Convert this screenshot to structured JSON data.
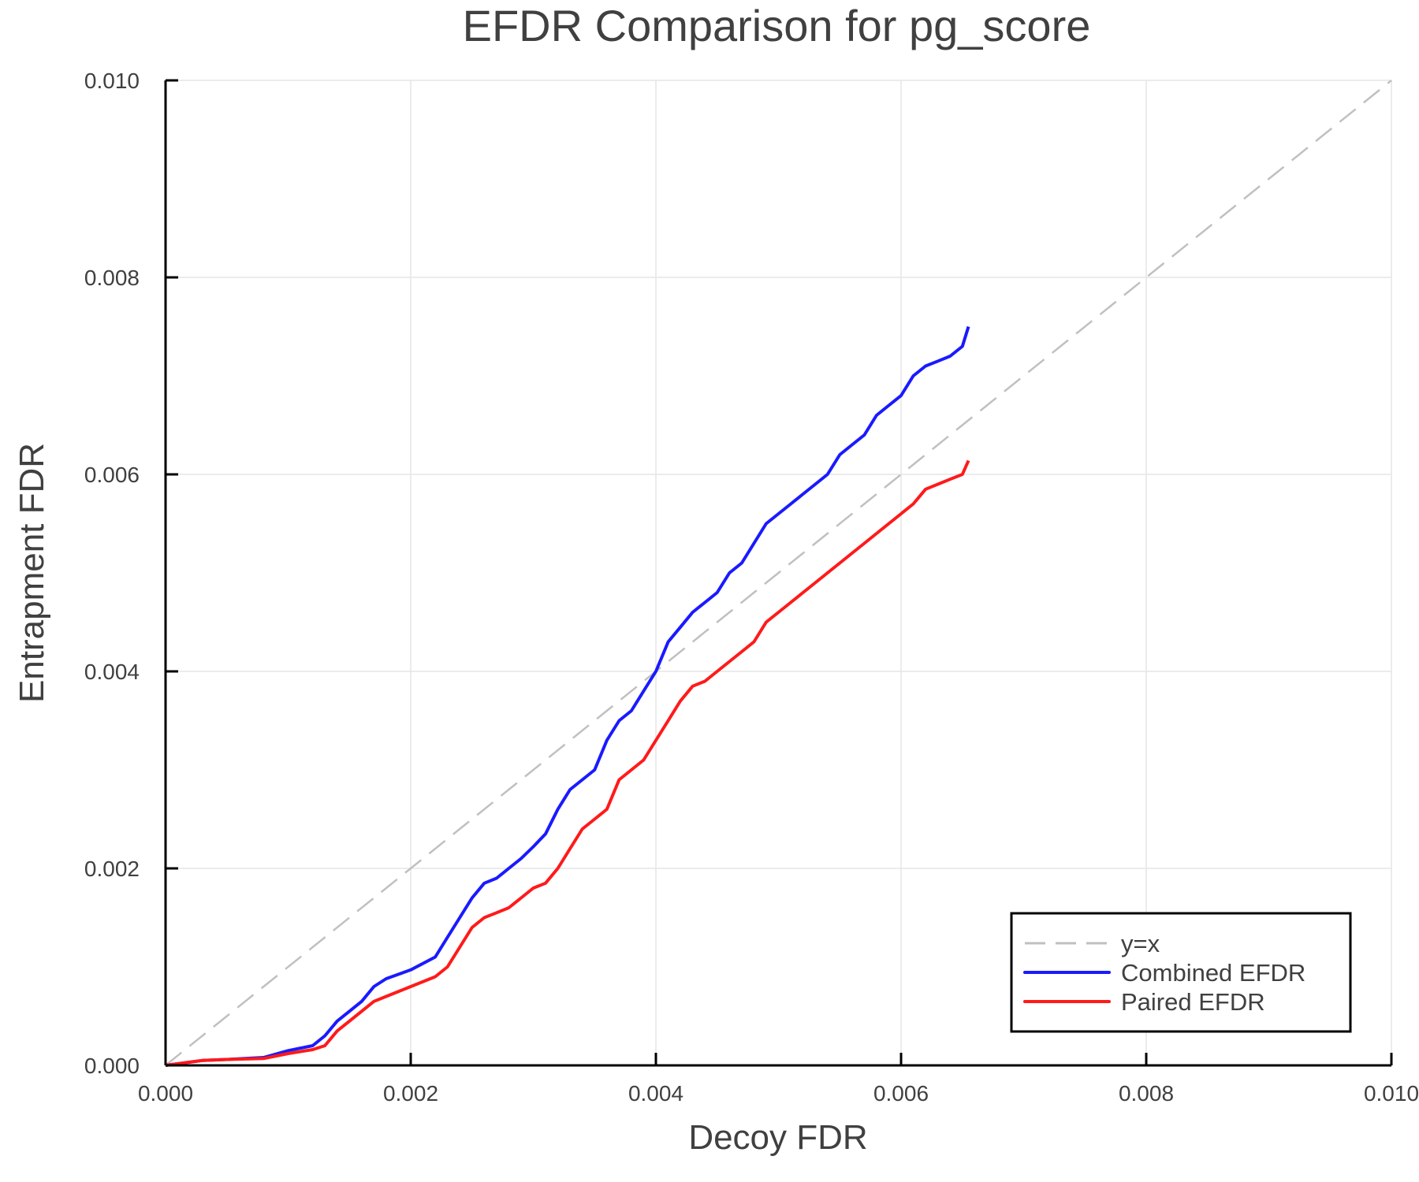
{
  "chart_data": {
    "type": "line",
    "title": "EFDR Comparison for pg_score",
    "xlabel": "Decoy FDR",
    "ylabel": "Entrapment FDR",
    "xlim": [
      0.0,
      0.01
    ],
    "ylim": [
      0.0,
      0.01
    ],
    "grid": true,
    "legend_position": "bottom-right",
    "x_ticks": [
      "0.000",
      "0.002",
      "0.004",
      "0.006",
      "0.008",
      "0.010"
    ],
    "y_ticks": [
      "0.000",
      "0.002",
      "0.004",
      "0.006",
      "0.008",
      "0.010"
    ],
    "series": [
      {
        "name": "y=x",
        "style": "dashed",
        "color": "#c0c0c0",
        "x": [
          0.0,
          0.01
        ],
        "y": [
          0.0,
          0.01
        ]
      },
      {
        "name": "Combined EFDR",
        "style": "solid",
        "color": "#1a1aff",
        "x": [
          0.0,
          0.0003,
          0.0005,
          0.0008,
          0.001,
          0.0012,
          0.0013,
          0.0014,
          0.0015,
          0.0016,
          0.0017,
          0.0018,
          0.002,
          0.0022,
          0.0023,
          0.0024,
          0.0025,
          0.0026,
          0.0027,
          0.0028,
          0.0029,
          0.003,
          0.0031,
          0.0032,
          0.0033,
          0.0034,
          0.0035,
          0.0036,
          0.0037,
          0.0038,
          0.0039,
          0.004,
          0.0041,
          0.0042,
          0.0043,
          0.0044,
          0.0045,
          0.0046,
          0.0047,
          0.0048,
          0.0049,
          0.005,
          0.0051,
          0.0052,
          0.0053,
          0.0054,
          0.0055,
          0.0056,
          0.0057,
          0.0058,
          0.0059,
          0.006,
          0.0061,
          0.0062,
          0.0063,
          0.0064,
          0.0065,
          0.00655
        ],
        "y": [
          0.0,
          5e-05,
          6e-05,
          8e-05,
          0.00015,
          0.0002,
          0.0003,
          0.00045,
          0.00055,
          0.00065,
          0.0008,
          0.00088,
          0.00097,
          0.0011,
          0.0013,
          0.0015,
          0.0017,
          0.00185,
          0.0019,
          0.002,
          0.0021,
          0.00222,
          0.00235,
          0.0026,
          0.0028,
          0.0029,
          0.003,
          0.0033,
          0.0035,
          0.0036,
          0.0038,
          0.004,
          0.0043,
          0.00445,
          0.0046,
          0.0047,
          0.0048,
          0.005,
          0.0051,
          0.0053,
          0.0055,
          0.0056,
          0.0057,
          0.0058,
          0.0059,
          0.006,
          0.0062,
          0.0063,
          0.0064,
          0.0066,
          0.0067,
          0.0068,
          0.007,
          0.0071,
          0.00715,
          0.0072,
          0.0073,
          0.0075
        ]
      },
      {
        "name": "Paired EFDR",
        "style": "solid",
        "color": "#ff1a1a",
        "x": [
          0.0,
          0.0003,
          0.0005,
          0.0008,
          0.001,
          0.0012,
          0.0013,
          0.0014,
          0.0015,
          0.0016,
          0.0017,
          0.0018,
          0.002,
          0.0022,
          0.0023,
          0.0024,
          0.0025,
          0.0026,
          0.0027,
          0.0028,
          0.0029,
          0.003,
          0.0031,
          0.0032,
          0.0033,
          0.0034,
          0.0035,
          0.0036,
          0.0037,
          0.0038,
          0.0039,
          0.004,
          0.0041,
          0.0042,
          0.0043,
          0.0044,
          0.0045,
          0.0046,
          0.0047,
          0.0048,
          0.0049,
          0.005,
          0.0051,
          0.0052,
          0.0053,
          0.0054,
          0.0055,
          0.0056,
          0.0057,
          0.0058,
          0.0059,
          0.006,
          0.0061,
          0.0062,
          0.0063,
          0.0064,
          0.0065,
          0.00655
        ],
        "y": [
          0.0,
          5e-05,
          6e-05,
          7e-05,
          0.00012,
          0.00016,
          0.0002,
          0.00035,
          0.00045,
          0.00055,
          0.00065,
          0.0007,
          0.0008,
          0.0009,
          0.001,
          0.0012,
          0.0014,
          0.0015,
          0.00155,
          0.0016,
          0.0017,
          0.0018,
          0.00185,
          0.002,
          0.0022,
          0.0024,
          0.0025,
          0.0026,
          0.0029,
          0.003,
          0.0031,
          0.0033,
          0.0035,
          0.0037,
          0.00385,
          0.0039,
          0.004,
          0.0041,
          0.0042,
          0.0043,
          0.0045,
          0.0046,
          0.0047,
          0.0048,
          0.0049,
          0.005,
          0.0051,
          0.0052,
          0.0053,
          0.0054,
          0.0055,
          0.0056,
          0.0057,
          0.00585,
          0.0059,
          0.00595,
          0.006,
          0.00614
        ]
      }
    ]
  },
  "legend": {
    "items": [
      {
        "label": "y=x",
        "color": "#c0c0c0",
        "dashed": true
      },
      {
        "label": "Combined EFDR",
        "color": "#1a1aff",
        "dashed": false
      },
      {
        "label": "Paired EFDR",
        "color": "#ff1a1a",
        "dashed": false
      }
    ]
  }
}
